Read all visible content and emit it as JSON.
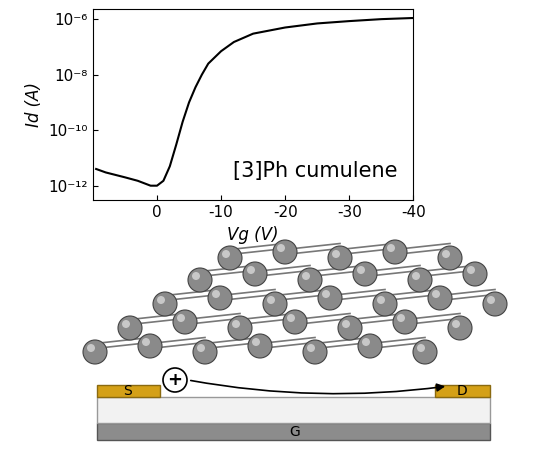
{
  "chart_data": {
    "type": "line",
    "x_label": "Vg (V)",
    "y_label": "Id (A)",
    "annotation": "[3]Ph cumulene",
    "log": "y",
    "color": "#000000",
    "x": [
      9.5,
      8,
      5,
      3,
      1,
      0,
      -1,
      -2,
      -3,
      -4,
      -5,
      -6,
      -7,
      -8,
      -10,
      -12,
      -15,
      -20,
      -25,
      -30,
      -35,
      -40
    ],
    "values": [
      4e-12,
      3e-12,
      2e-12,
      1.5e-12,
      1e-12,
      1e-12,
      1.5e-12,
      5e-12,
      3e-11,
      2e-10,
      1e-09,
      3.5e-09,
      1e-08,
      2.5e-08,
      7e-08,
      1.5e-07,
      3e-07,
      5e-07,
      7e-07,
      8.5e-07,
      1e-06,
      1.1e-06
    ],
    "xlim": [
      10,
      -40
    ],
    "xticks": [
      0,
      -10,
      -20,
      -30,
      -40
    ],
    "ylim": [
      3e-13,
      2.3e-06
    ],
    "yticks": [
      {
        "value": 1e-12,
        "label": "10⁻¹²"
      },
      {
        "value": 1e-10,
        "label": "10⁻¹⁰"
      },
      {
        "value": 1e-08,
        "label": "10⁻⁸"
      },
      {
        "value": 1e-06,
        "label": "10⁻⁶"
      }
    ]
  },
  "diagram": {
    "source": "S",
    "drain": "D",
    "gate": "G",
    "carrier": "+"
  }
}
